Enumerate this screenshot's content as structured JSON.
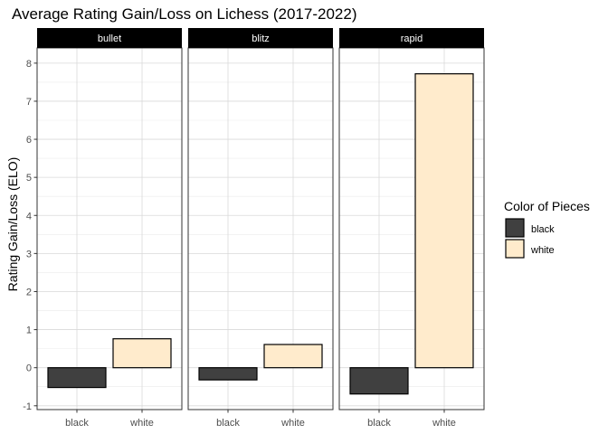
{
  "chart_data": {
    "type": "bar",
    "title": "Average Rating Gain/Loss on Lichess (2017-2022)",
    "xlabel": "",
    "ylabel": "Rating Gain/Loss (ELO)",
    "ylim": [
      -1.1,
      8.4
    ],
    "y_ticks": [
      -1,
      0,
      1,
      2,
      3,
      4,
      5,
      6,
      7,
      8
    ],
    "grid": true,
    "legend": {
      "title": "Color of Pieces",
      "position": "right",
      "entries": [
        {
          "label": "black",
          "color": "#404040"
        },
        {
          "label": "white",
          "color": "#ffebcc"
        }
      ]
    },
    "categories": [
      "black",
      "white"
    ],
    "facets": [
      {
        "label": "bullet",
        "values": [
          -0.52,
          0.76
        ]
      },
      {
        "label": "blitz",
        "values": [
          -0.32,
          0.61
        ]
      },
      {
        "label": "rapid",
        "values": [
          -0.69,
          7.72
        ]
      }
    ]
  }
}
